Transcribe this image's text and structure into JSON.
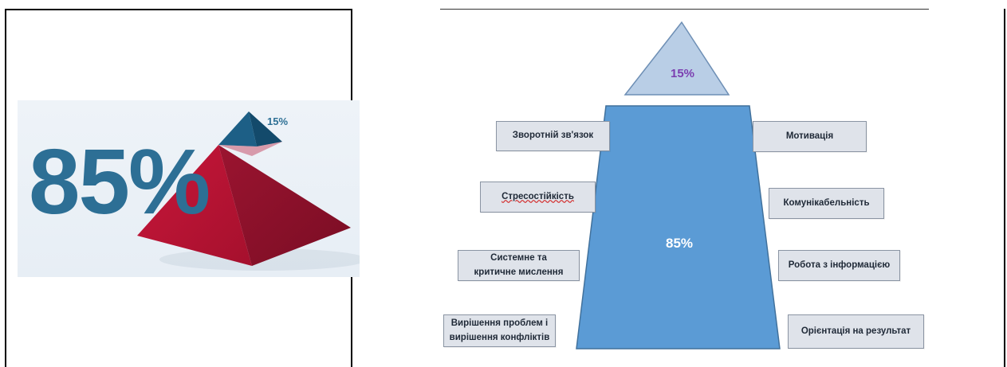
{
  "left_image": {
    "big_value": "85%",
    "small_value": "15%"
  },
  "diagram": {
    "top_value": "15%",
    "main_value": "85%",
    "labels_left": [
      "Зворотній зв'язок",
      "Стресостійкість",
      "Системне та критичне мислення",
      "Вирішення проблем і вирішення конфліктів"
    ],
    "labels_right": [
      "Мотивація",
      "Комунікабельність",
      "Робота з інформацією",
      "Орієнтація на результат"
    ],
    "colors": {
      "top_triangle": "#b9cee6",
      "main_trapezoid": "#5b9bd5",
      "top_value_color": "#7b3fb0",
      "label_fill": "#dfe3ea"
    }
  }
}
